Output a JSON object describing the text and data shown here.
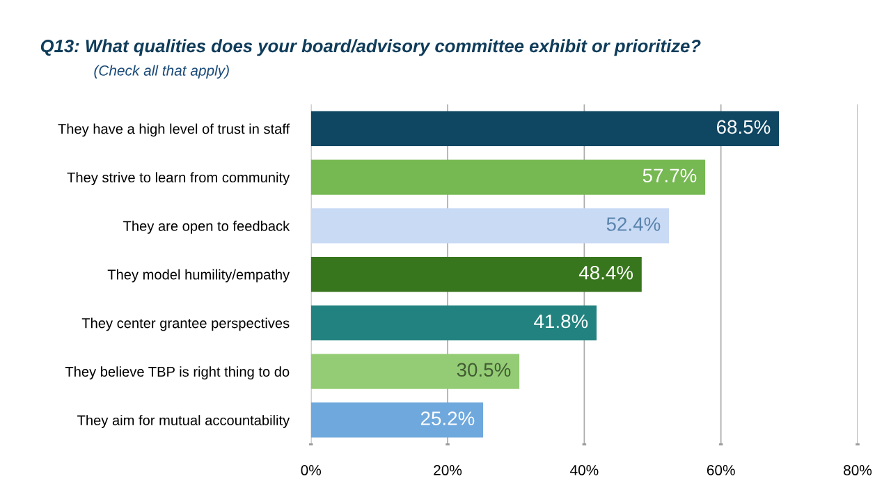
{
  "chart_data": {
    "type": "bar",
    "orientation": "horizontal",
    "title": "Q13: What qualities does your board/advisory committee exhibit or prioritize?",
    "subtitle": "(Check all that apply)",
    "categories": [
      "They have a high level of trust in staff",
      "They strive to learn from community",
      "They are open to feedback",
      "They model humility/empathy",
      "They center grantee perspectives",
      "They believe TBP is right thing to do",
      "They aim for mutual accountability"
    ],
    "values": [
      68.5,
      57.7,
      52.4,
      48.4,
      41.8,
      30.5,
      25.2
    ],
    "colors": [
      "#0f4662",
      "#76b852",
      "#c9daf5",
      "#38761d",
      "#21827f",
      "#93cc74",
      "#6fa8dc"
    ],
    "value_labels": [
      "68.5%",
      "57.7%",
      "52.4%",
      "48.4%",
      "41.8%",
      "30.5%",
      "25.2%"
    ],
    "xlim": [
      0,
      80
    ],
    "xticks": [
      {
        "value": 0,
        "label": "0%"
      },
      {
        "value": 20,
        "label": "20%"
      },
      {
        "value": 40,
        "label": "40%"
      },
      {
        "value": 60,
        "label": "60%"
      },
      {
        "value": 80,
        "label": "80%"
      }
    ],
    "grid": "x",
    "legend": false
  }
}
